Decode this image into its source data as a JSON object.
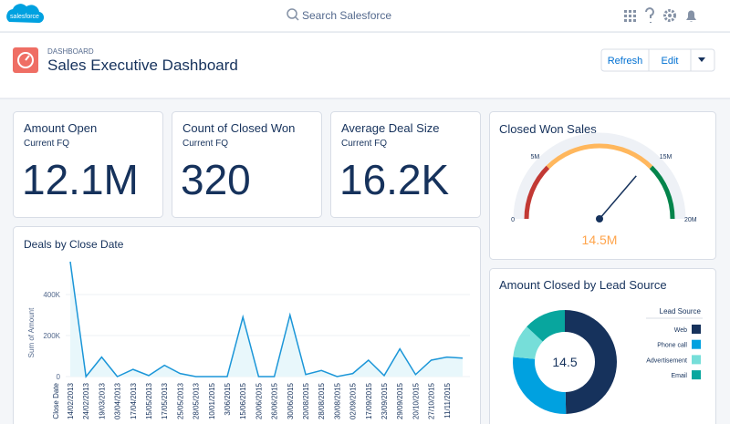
{
  "header": {
    "logo": "salesforce",
    "search": "Search Salesforce"
  },
  "page_header": {
    "label": "DASHBOARD",
    "title": "Sales Executive Dashboard",
    "buttons": [
      "Refresh",
      "Edit"
    ]
  },
  "metrics": [
    {
      "title": "Amount Open",
      "subtitle": "Current FQ",
      "value": "12.1M"
    },
    {
      "title": "Count of Closed Won",
      "subtitle": "Current FQ",
      "value": 320
    },
    {
      "title": "Average Deal Size",
      "subtitle": "Current FQ",
      "value": "16.2K"
    }
  ],
  "gauge": {
    "type": "gauge",
    "title": "Closed Won Sales",
    "value": 14.5,
    "value_label": "14.5M",
    "range": [
      0,
      20
    ],
    "ticks": [
      0,
      {
        "value": 5,
        "label": "5M"
      },
      {
        "value": 15,
        "label": "15M"
      },
      {
        "value": 20,
        "label": "20M"
      }
    ],
    "bands": [
      {
        "from": 0,
        "to": 5,
        "color": "#c23934"
      },
      {
        "from": 5,
        "to": 15,
        "color": "#ffb75d"
      },
      {
        "from": 15,
        "to": 20,
        "color": "#04844b"
      }
    ]
  },
  "line_chart": {
    "type": "line",
    "title": "Deals by Close Date",
    "x_label": "Close Date",
    "y_label": "Sum of Amount",
    "categories": [
      "14/02/2013",
      "24/02/2013",
      "19/03/2013",
      "03/04/2013",
      "17/04/2013",
      "15/05/2013",
      "17/05/2013",
      "25/05/2013",
      "28/05/2013",
      "10/01/2015",
      "3/06/2015",
      "15/06/2015",
      "20/06/2015",
      "26/06/2015",
      "30/06/2015",
      "20/08/2015",
      "28/08/2015",
      "30/08/2015",
      "02/09/2015",
      "17/09/2015",
      "23/09/2015",
      "29/09/2015",
      "20/10/2015",
      "27/10/2015",
      "11/11/2015",
      null
    ],
    "values": [
      560000,
      0,
      95000,
      0,
      35000,
      5000,
      55000,
      15000,
      0,
      0,
      0,
      290000,
      0,
      0,
      300000,
      10000,
      30000,
      0,
      15000,
      80000,
      5000,
      135000,
      10000,
      80000,
      95000,
      90000
    ],
    "ylim": [
      0,
      560000
    ],
    "yticks": [
      0,
      {
        "value": 200000,
        "label": "200K"
      },
      {
        "value": 400000,
        "label": "400K"
      }
    ],
    "color": "#1b96d8",
    "fill": "#e8f7fb",
    "grid": true
  },
  "donut": {
    "type": "donut",
    "title": "Amount Closed by Lead Source",
    "total": 14.5,
    "legend_title": "Lead Source",
    "series": [
      {
        "name": "Web",
        "color": "#16325c",
        "value": 7.2
      },
      {
        "name": "Phone call",
        "color": "#00a1e0",
        "value": 3.9
      },
      {
        "name": "Advertisement",
        "color": "#76ded9",
        "value": 1.5
      },
      {
        "name": "Email",
        "color": "#08a69e",
        "value": 1.9
      }
    ]
  }
}
